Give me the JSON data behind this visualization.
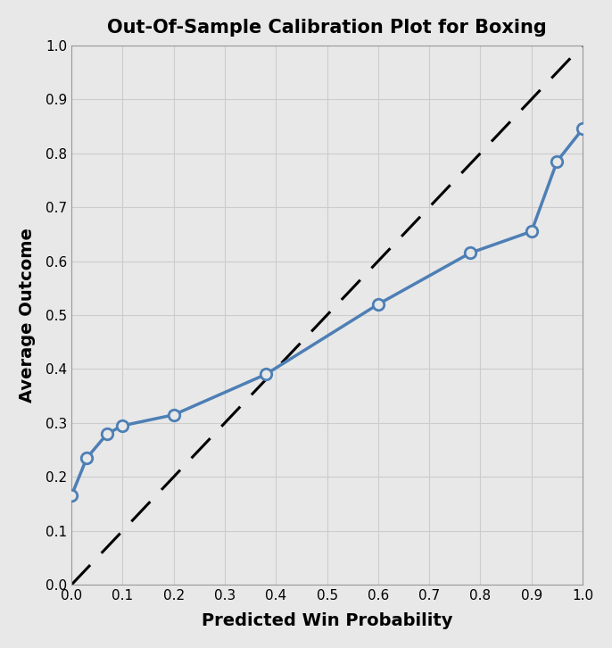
{
  "title": "Out-Of-Sample Calibration Plot for Boxing",
  "xlabel": "Predicted Win Probability",
  "ylabel": "Average Outcome",
  "x_data": [
    0.0,
    0.03,
    0.07,
    0.1,
    0.2,
    0.38,
    0.6,
    0.78,
    0.9,
    0.95,
    1.0
  ],
  "y_data": [
    0.165,
    0.235,
    0.28,
    0.295,
    0.315,
    0.39,
    0.52,
    0.615,
    0.655,
    0.785,
    0.845
  ],
  "line_color": "#4d7fb5",
  "diag_color": "black",
  "xlim": [
    0.0,
    1.0
  ],
  "ylim": [
    0.0,
    1.0
  ],
  "xticks": [
    0.0,
    0.1,
    0.2,
    0.3,
    0.4,
    0.5,
    0.6,
    0.7,
    0.8,
    0.9,
    1.0
  ],
  "yticks": [
    0.0,
    0.1,
    0.2,
    0.3,
    0.4,
    0.5,
    0.6,
    0.7,
    0.8,
    0.9,
    1.0
  ],
  "title_fontsize": 15,
  "label_fontsize": 14,
  "tick_fontsize": 11,
  "line_width": 2.5,
  "marker_size": 9,
  "marker_linewidth": 2.0,
  "grid_color": "#cccccc",
  "bg_color": "#e8e8e8",
  "fig_bg_color": "#e8e8e8"
}
